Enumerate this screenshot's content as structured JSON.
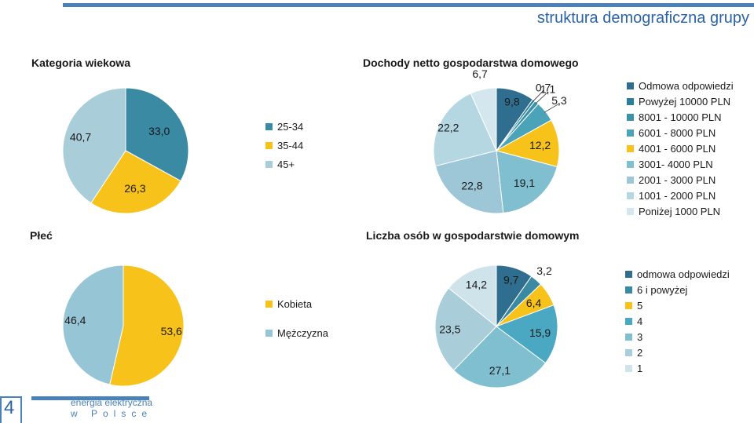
{
  "page": {
    "title": "struktura demograficzna grupy",
    "page_number": "4",
    "footer_line1": "energia elektryczna",
    "footer_line2": "w Polsce"
  },
  "labels": {
    "plec": "Płeć"
  },
  "chart_data": [
    {
      "id": "age",
      "type": "pie",
      "title": "Kategoria wiekowa",
      "categories": [
        "25-34",
        "35-44",
        "45+"
      ],
      "values": [
        33.0,
        26.3,
        40.7
      ],
      "value_labels": [
        "33,0",
        "26,3",
        "40,7"
      ],
      "colors": [
        "#3a8aa4",
        "#f7c21a",
        "#a9ceda"
      ],
      "legend_position": "right"
    },
    {
      "id": "income",
      "type": "pie",
      "title": "Dochody netto gospodarstwa domowego",
      "categories": [
        "Odmowa odpowiedzi",
        "Powyżej 10000 PLN",
        "8001 - 10000 PLN",
        "6001 - 8000 PLN",
        "4001 - 6000 PLN",
        "3001- 4000 PLN",
        "2001 - 3000 PLN",
        "1001 - 2000 PLN",
        "Poniżej 1000 PLN"
      ],
      "values": [
        9.8,
        0.7,
        1.1,
        5.3,
        12.2,
        19.1,
        22.8,
        22.2,
        6.7
      ],
      "value_labels": [
        "9,8",
        "0,7",
        "1,1",
        "5,3",
        "12,2",
        "19,1",
        "22,8",
        "22,2",
        "6,7"
      ],
      "colors": [
        "#2f6e8f",
        "#2b7f9d",
        "#3a93a8",
        "#4aa3b9",
        "#f7c21a",
        "#80bfd0",
        "#9dc7d6",
        "#b5d7e2",
        "#d4e7ee"
      ],
      "legend_position": "right"
    },
    {
      "id": "gender",
      "type": "pie",
      "title": "",
      "categories": [
        "Kobieta",
        "Mężczyzna"
      ],
      "values": [
        53.6,
        46.4
      ],
      "value_labels": [
        "53,6",
        "46,4"
      ],
      "colors": [
        "#f7c21a",
        "#96c5d6"
      ],
      "legend_position": "right"
    },
    {
      "id": "household",
      "type": "pie",
      "title": "Liczba osób w gospodarstwie domowym",
      "categories": [
        "odmowa odpowiedzi",
        "6 i powyżej",
        "5",
        "4",
        "3",
        "2",
        "1"
      ],
      "values": [
        9.7,
        3.2,
        6.4,
        15.9,
        27.1,
        23.5,
        14.2
      ],
      "value_labels": [
        "9,7",
        "3,2",
        "6,4",
        "15,9",
        "27,1",
        "23,5",
        "14,2"
      ],
      "colors": [
        "#2f6e8f",
        "#3a8aa4",
        "#f7c21a",
        "#4aa8c2",
        "#80bfd0",
        "#a9ceda",
        "#cfe3ea"
      ],
      "legend_position": "right"
    }
  ]
}
